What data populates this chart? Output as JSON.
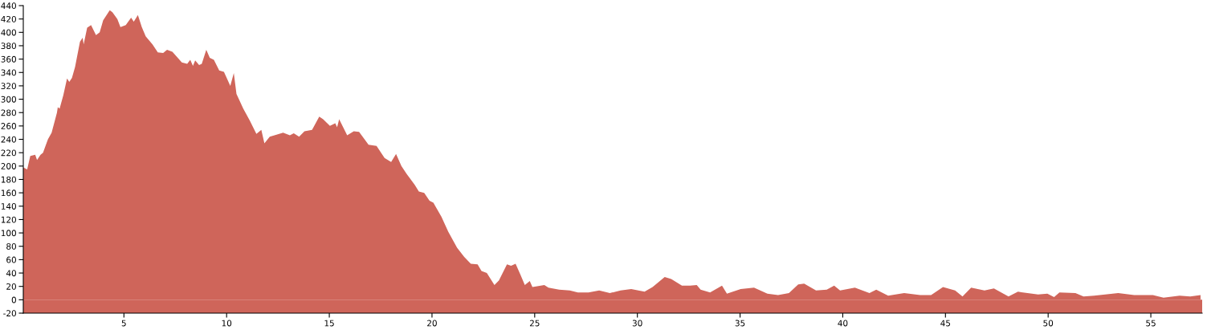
{
  "chart_data": {
    "type": "area",
    "color": "#cf655a",
    "grid": false,
    "x": [
      0.1,
      0.29,
      0.44,
      0.68,
      0.77,
      0.94,
      1.06,
      1.3,
      1.48,
      1.74,
      1.78,
      1.87,
      2.05,
      2.23,
      2.34,
      2.47,
      2.62,
      2.86,
      2.99,
      3.04,
      3.21,
      3.4,
      3.64,
      3.82,
      3.99,
      4.31,
      4.44,
      4.68,
      4.83,
      5.09,
      5.35,
      5.48,
      5.68,
      5.87,
      6.06,
      6.39,
      6.65,
      6.91,
      7.1,
      7.36,
      7.56,
      7.82,
      8.08,
      8.23,
      8.36,
      8.47,
      8.66,
      8.79,
      9.01,
      9.18,
      9.38,
      9.64,
      9.87,
      10.18,
      10.35,
      10.48,
      10.81,
      11.13,
      11.45,
      11.69,
      11.84,
      12.1,
      12.43,
      12.75,
      13.08,
      13.27,
      13.53,
      13.79,
      14.16,
      14.51,
      14.7,
      15.03,
      15.29,
      15.38,
      15.48,
      15.87,
      16.19,
      16.45,
      16.91,
      17.3,
      17.69,
      18.01,
      18.25,
      18.51,
      18.77,
      19.16,
      19.36,
      19.62,
      19.88,
      20.07,
      20.46,
      20.79,
      21.22,
      21.57,
      21.89,
      22.22,
      22.41,
      22.67,
      23.04,
      23.26,
      23.65,
      23.85,
      24.07,
      24.3,
      24.52,
      24.76,
      24.89,
      25.47,
      25.67,
      26.19,
      26.71,
      27.1,
      27.62,
      28.14,
      28.66,
      29.18,
      29.7,
      30.35,
      30.74,
      31.33,
      31.65,
      32.17,
      32.56,
      32.89,
      33.08,
      33.54,
      34.12,
      34.36,
      35.03,
      35.68,
      36.33,
      36.85,
      37.38,
      37.83,
      38.12,
      38.7,
      39.22,
      39.58,
      39.87,
      40.59,
      41.3,
      41.63,
      42.21,
      42.99,
      43.77,
      44.3,
      44.88,
      45.47,
      45.83,
      46.25,
      46.9,
      47.36,
      48.07,
      48.53,
      49.51,
      49.96,
      50.29,
      50.55,
      51.33,
      51.72,
      52.24,
      53.41,
      54.19,
      55.1,
      55.62,
      56.4,
      56.92,
      57.42
    ],
    "values": [
      198,
      195,
      215,
      217,
      209,
      217,
      220,
      240,
      250,
      280,
      288,
      286,
      306,
      331,
      326,
      332,
      348,
      386,
      392,
      382,
      407,
      411,
      396,
      400,
      418,
      433,
      430,
      420,
      408,
      411,
      422,
      416,
      426,
      408,
      394,
      382,
      370,
      369,
      374,
      371,
      364,
      355,
      353,
      359,
      350,
      358,
      351,
      353,
      374,
      362,
      359,
      343,
      341,
      320,
      339,
      308,
      286,
      268,
      248,
      254,
      234,
      244,
      247,
      250,
      246,
      249,
      244,
      252,
      254,
      274,
      270,
      260,
      264,
      258,
      270,
      246,
      252,
      251,
      232,
      230,
      212,
      206,
      218,
      200,
      188,
      172,
      162,
      160,
      148,
      145,
      124,
      102,
      78,
      64,
      54,
      53,
      43,
      40,
      22,
      29,
      53,
      51,
      54,
      38,
      22,
      28,
      19,
      22,
      18,
      15,
      14,
      11,
      11,
      14,
      10,
      14,
      16,
      12,
      19,
      34,
      31,
      21,
      21,
      22,
      15,
      11,
      21,
      9,
      16,
      18,
      9,
      7,
      10,
      23,
      24,
      14,
      15,
      21,
      14,
      18,
      10,
      15,
      6,
      10,
      7,
      7,
      19,
      14,
      5,
      18,
      14,
      17,
      5,
      12,
      8,
      9,
      4,
      11,
      10,
      5,
      6,
      10,
      7,
      7,
      3,
      6,
      5,
      7
    ],
    "bands": [
      {
        "axis": "y",
        "from": -20,
        "to": 0,
        "color": "#cf655a"
      }
    ],
    "xlim": [
      0.1,
      57.5
    ],
    "xticks": [
      5,
      10,
      15,
      20,
      25,
      30,
      35,
      40,
      45,
      50,
      55
    ],
    "ylim": [
      -20,
      440
    ],
    "yticks": [
      -20,
      0,
      20,
      40,
      60,
      80,
      100,
      120,
      140,
      160,
      180,
      200,
      220,
      240,
      260,
      280,
      300,
      320,
      340,
      360,
      380,
      400,
      420,
      440
    ]
  }
}
